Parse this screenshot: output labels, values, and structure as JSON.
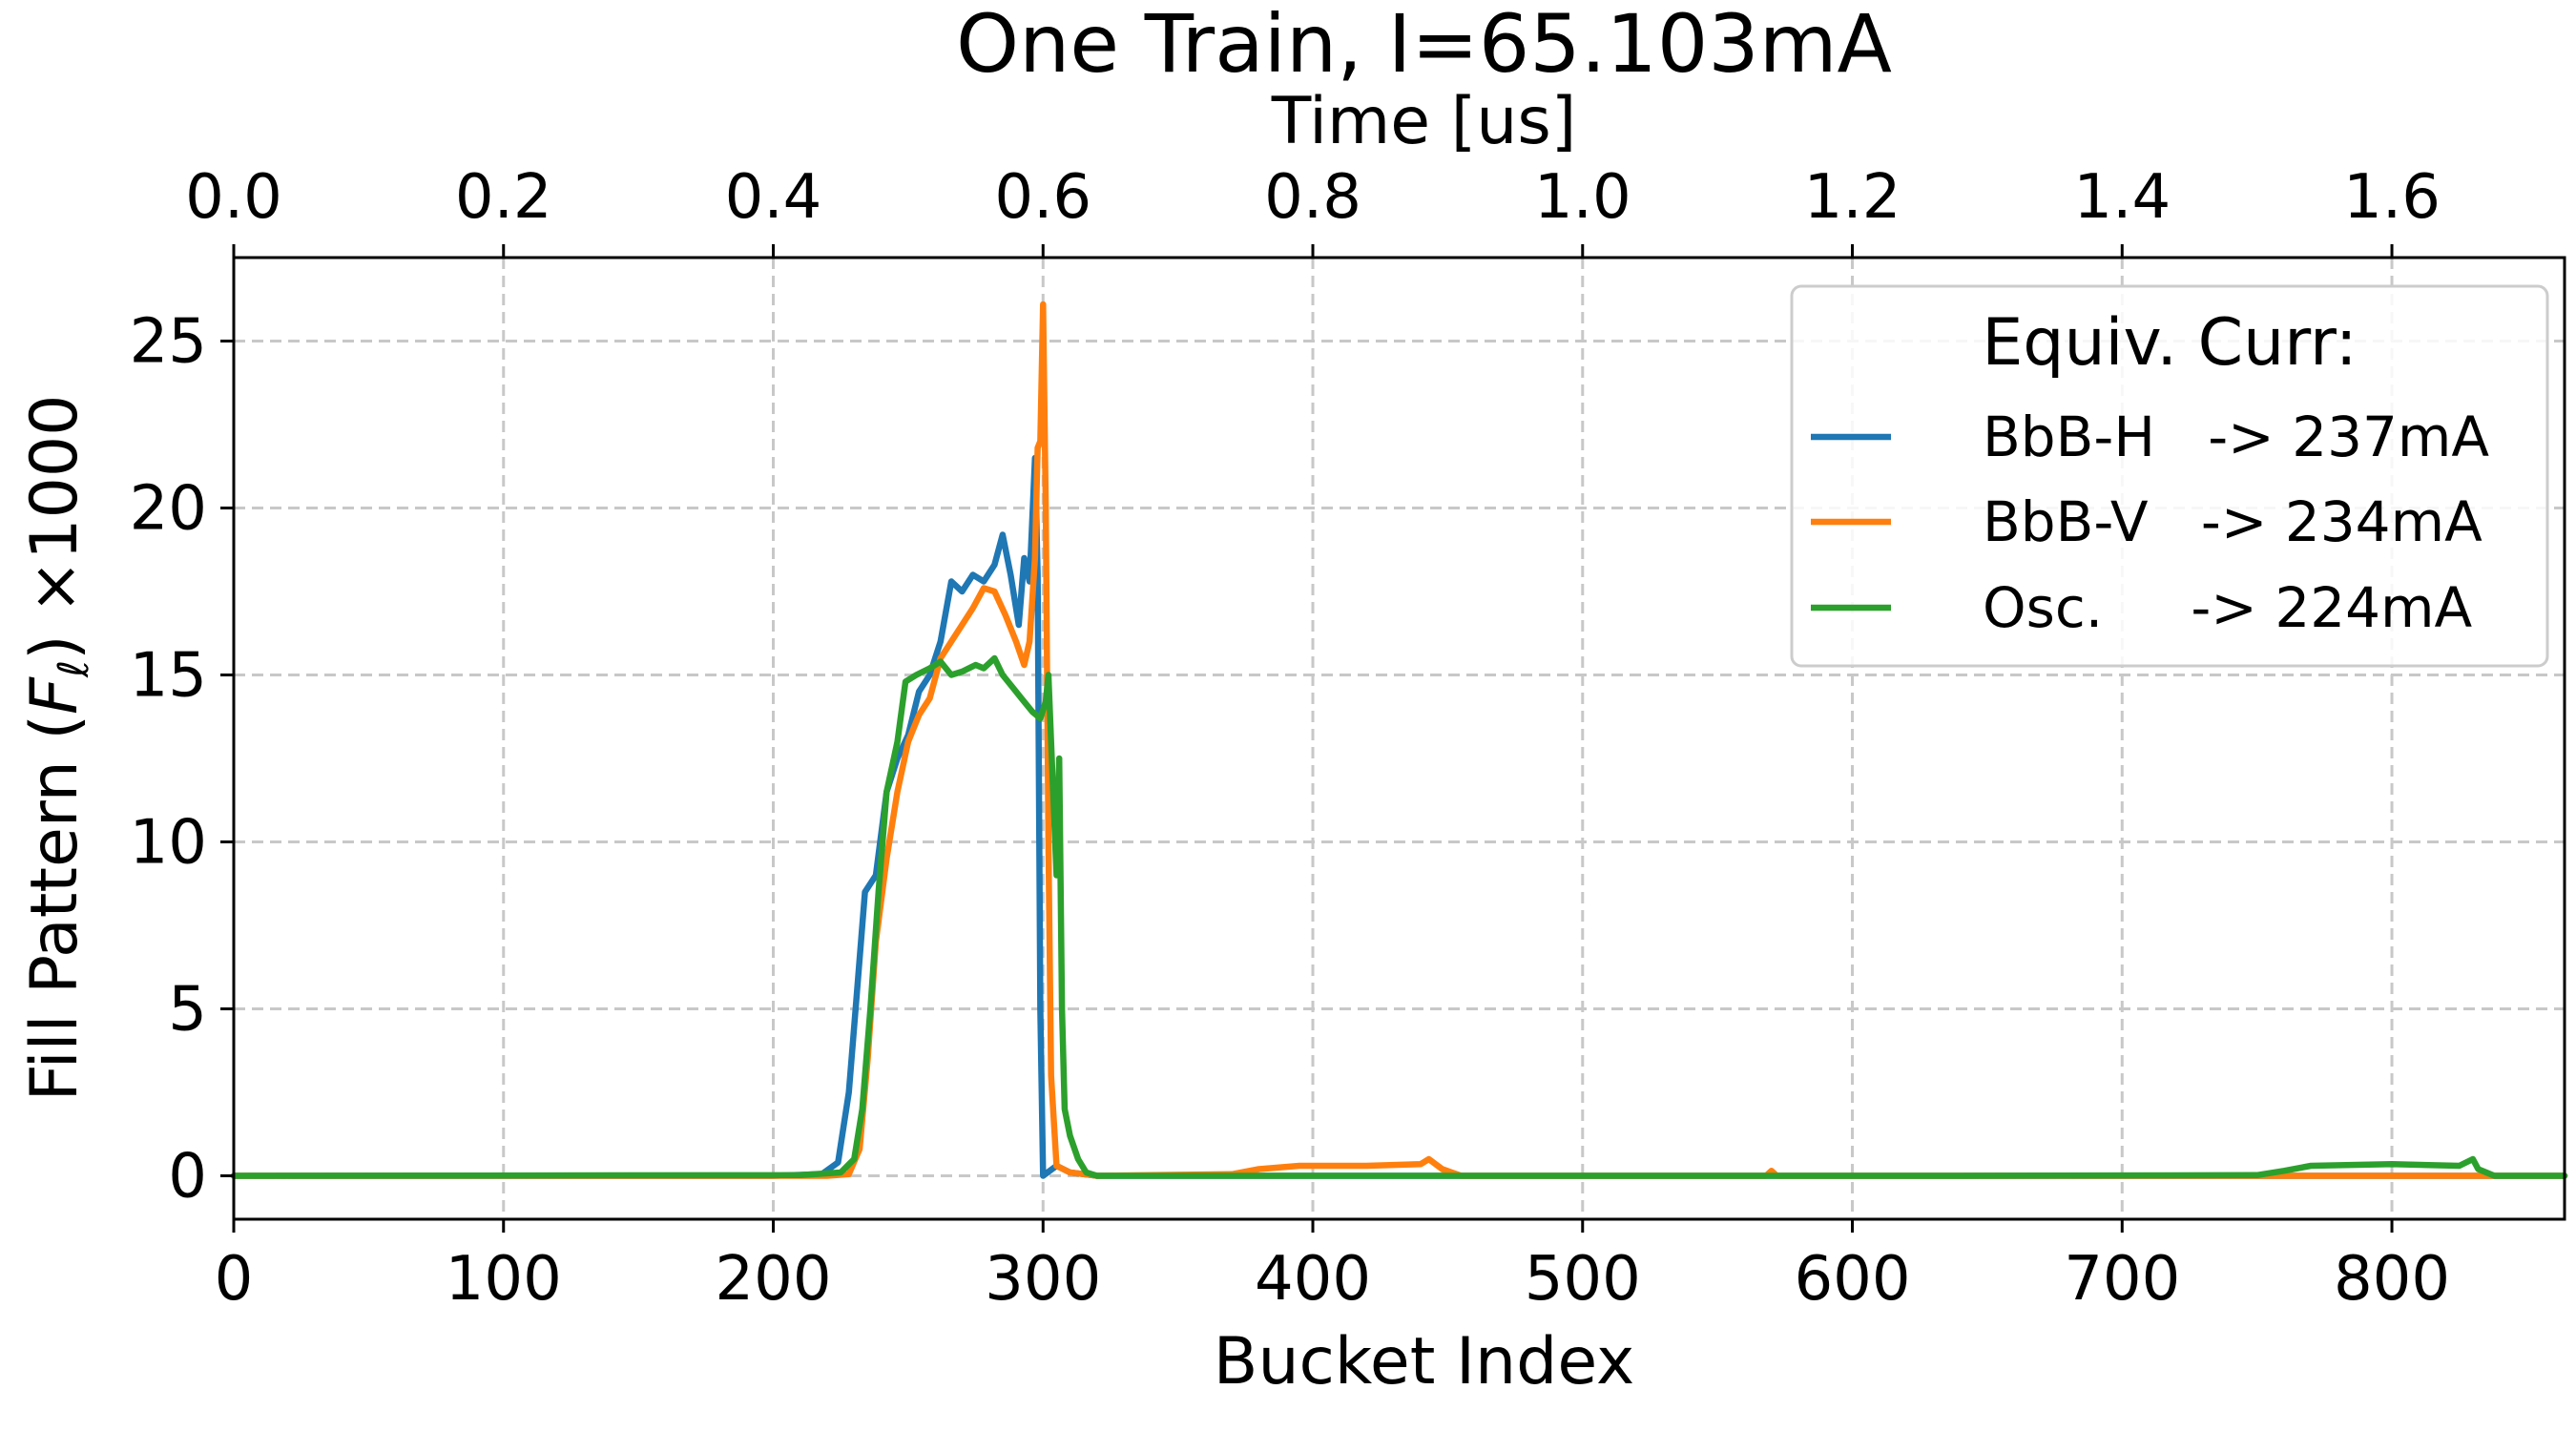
{
  "chart_data": {
    "type": "line",
    "title": "One Train, I=65.103mA",
    "xlabel": "Bucket Index",
    "ylabel": "Fill Pattern (F_ℓ) ×1000",
    "x2label": "Time [us]",
    "xlim": [
      0,
      864
    ],
    "ylim": [
      -1.3,
      27.5
    ],
    "x2lim": [
      0,
      1.728
    ],
    "xticks": [
      0,
      100,
      200,
      300,
      400,
      500,
      600,
      700,
      800
    ],
    "yticks": [
      0,
      5,
      10,
      15,
      20,
      25
    ],
    "x2ticks": [
      "0.0",
      "0.2",
      "0.4",
      "0.6",
      "0.8",
      "1.0",
      "1.2",
      "1.4",
      "1.6"
    ],
    "grid": true,
    "legend": {
      "title": "Equiv. Curr:",
      "placement": "top-right",
      "entries": [
        "BbB-H   -> 237mA",
        "BbB-V   -> 234mA",
        "Osc.     -> 224mA"
      ]
    },
    "series": [
      {
        "name": "BbB-H   -> 237mA",
        "color": "#1f77b4",
        "points": [
          [
            0,
            0
          ],
          [
            200,
            0
          ],
          [
            218,
            0.05
          ],
          [
            224,
            0.4
          ],
          [
            228,
            2.5
          ],
          [
            231,
            5.5
          ],
          [
            234,
            8.5
          ],
          [
            238,
            9.0
          ],
          [
            242,
            11.5
          ],
          [
            246,
            12.5
          ],
          [
            250,
            13.2
          ],
          [
            254,
            14.5
          ],
          [
            258,
            15.0
          ],
          [
            262,
            16.0
          ],
          [
            266,
            17.8
          ],
          [
            270,
            17.5
          ],
          [
            274,
            18.0
          ],
          [
            278,
            17.8
          ],
          [
            282,
            18.3
          ],
          [
            285,
            19.2
          ],
          [
            288,
            18.0
          ],
          [
            291,
            16.5
          ],
          [
            293,
            18.5
          ],
          [
            295,
            17.8
          ],
          [
            297,
            21.5
          ],
          [
            298,
            18.0
          ],
          [
            299,
            5.0
          ],
          [
            300,
            0
          ],
          [
            305,
            0.3
          ],
          [
            310,
            0.1
          ],
          [
            320,
            0
          ],
          [
            864,
            0
          ]
        ]
      },
      {
        "name": "BbB-V   -> 234mA",
        "color": "#ff7f0e",
        "points": [
          [
            0,
            0
          ],
          [
            220,
            0
          ],
          [
            228,
            0.05
          ],
          [
            232,
            0.8
          ],
          [
            235,
            3.5
          ],
          [
            238,
            7.0
          ],
          [
            242,
            9.5
          ],
          [
            246,
            11.5
          ],
          [
            250,
            13.0
          ],
          [
            254,
            13.8
          ],
          [
            258,
            14.3
          ],
          [
            262,
            15.5
          ],
          [
            266,
            16.0
          ],
          [
            270,
            16.5
          ],
          [
            274,
            17.0
          ],
          [
            278,
            17.6
          ],
          [
            282,
            17.5
          ],
          [
            286,
            16.8
          ],
          [
            290,
            16.0
          ],
          [
            293,
            15.3
          ],
          [
            295,
            16.0
          ],
          [
            297,
            18.5
          ],
          [
            298,
            21.8
          ],
          [
            299,
            22.0
          ],
          [
            300,
            26.1
          ],
          [
            301,
            20.0
          ],
          [
            302,
            10.0
          ],
          [
            303,
            3.0
          ],
          [
            305,
            0.3
          ],
          [
            310,
            0.1
          ],
          [
            320,
            0
          ],
          [
            370,
            0.05
          ],
          [
            380,
            0.2
          ],
          [
            395,
            0.3
          ],
          [
            420,
            0.3
          ],
          [
            440,
            0.35
          ],
          [
            443,
            0.5
          ],
          [
            448,
            0.2
          ],
          [
            455,
            0
          ],
          [
            568,
            0
          ],
          [
            570,
            0.15
          ],
          [
            572,
            0
          ],
          [
            864,
            0
          ]
        ]
      },
      {
        "name": "Osc.     -> 224mA",
        "color": "#2ca02c",
        "points": [
          [
            0,
            0
          ],
          [
            210,
            0.02
          ],
          [
            225,
            0.1
          ],
          [
            230,
            0.5
          ],
          [
            233,
            2.0
          ],
          [
            236,
            5.0
          ],
          [
            239,
            8.5
          ],
          [
            242,
            11.5
          ],
          [
            246,
            13.0
          ],
          [
            249,
            14.8
          ],
          [
            253,
            15.0
          ],
          [
            258,
            15.2
          ],
          [
            262,
            15.4
          ],
          [
            266,
            15.0
          ],
          [
            270,
            15.1
          ],
          [
            275,
            15.3
          ],
          [
            278,
            15.2
          ],
          [
            282,
            15.5
          ],
          [
            285,
            15.0
          ],
          [
            289,
            14.6
          ],
          [
            292,
            14.3
          ],
          [
            296,
            13.9
          ],
          [
            299,
            13.7
          ],
          [
            301,
            14.2
          ],
          [
            302,
            15.0
          ],
          [
            303,
            13.0
          ],
          [
            305,
            9.0
          ],
          [
            306,
            12.5
          ],
          [
            307,
            5.0
          ],
          [
            308,
            2.0
          ],
          [
            310,
            1.2
          ],
          [
            313,
            0.5
          ],
          [
            316,
            0.1
          ],
          [
            320,
            0
          ],
          [
            640,
            0
          ],
          [
            750,
            0.02
          ],
          [
            760,
            0.15
          ],
          [
            770,
            0.3
          ],
          [
            800,
            0.35
          ],
          [
            825,
            0.3
          ],
          [
            830,
            0.5
          ],
          [
            832,
            0.2
          ],
          [
            838,
            0
          ],
          [
            864,
            0
          ]
        ]
      }
    ]
  }
}
